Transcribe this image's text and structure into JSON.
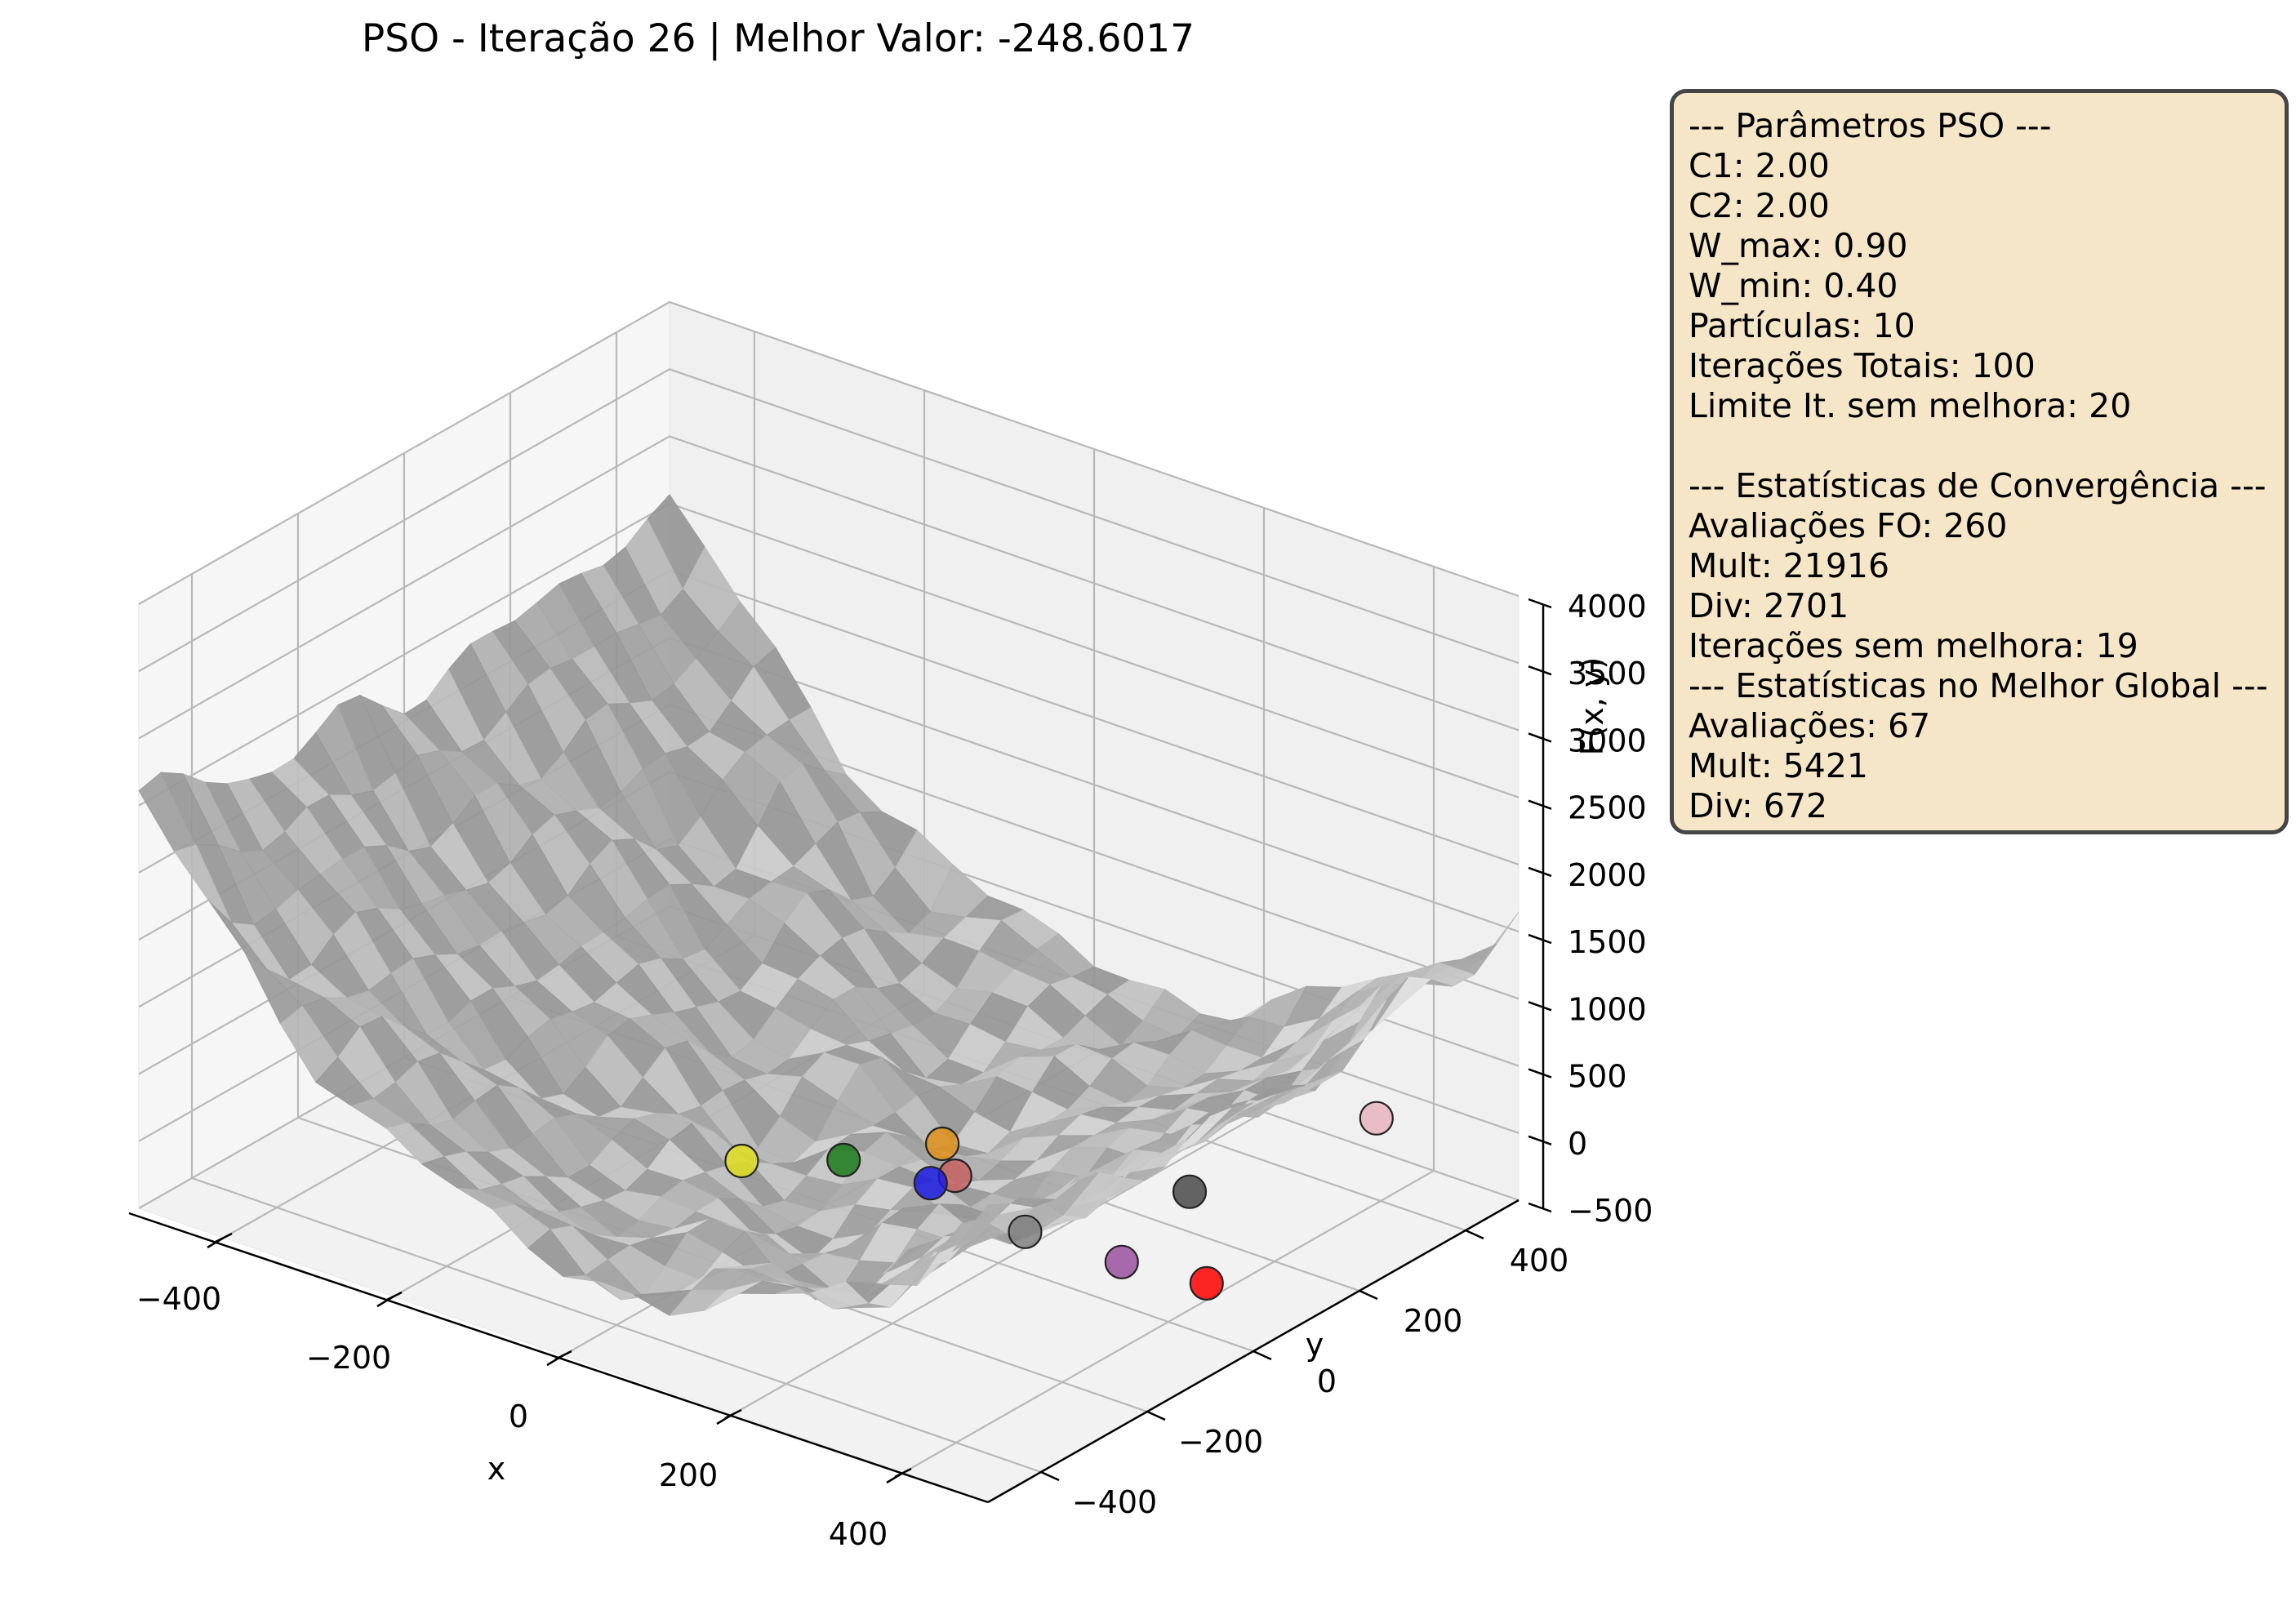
{
  "chart_data": {
    "type": "scatter",
    "subtype": "3d-surface-with-particles",
    "title": "PSO - Iteração 26 | Melhor Valor: -248.6017",
    "xlabel": "x",
    "ylabel": "y",
    "zlabel": "F(x, y)",
    "xlim": [
      -500,
      500
    ],
    "ylim": [
      -500,
      500
    ],
    "zlim": [
      -500,
      4000
    ],
    "x_ticks": [
      "−400",
      "−200",
      "0",
      "200",
      "400"
    ],
    "y_ticks": [
      "−400",
      "−200",
      "0",
      "200",
      "400"
    ],
    "z_ticks": [
      "−500",
      "0",
      "500",
      "1000",
      "1500",
      "2000",
      "2500",
      "3000",
      "3500",
      "4000"
    ],
    "grid": true,
    "surface_color": "#b0b0b0",
    "particles": [
      {
        "name": "pink",
        "color": "#e8b4c0",
        "x": 420,
        "y": 360,
        "z": 250
      },
      {
        "name": "yellow",
        "color": "#e0e020",
        "x": -90,
        "y": -20,
        "z": -330
      },
      {
        "name": "green",
        "color": "#1a7a1a",
        "x": -20,
        "y": 60,
        "z": -350
      },
      {
        "name": "orange",
        "color": "#e0901a",
        "x": 40,
        "y": 150,
        "z": -300
      },
      {
        "name": "brown",
        "color": "#c86464",
        "x": 80,
        "y": 110,
        "z": -360
      },
      {
        "name": "blue",
        "color": "#1a1ae0",
        "x": 70,
        "y": 80,
        "z": -370
      },
      {
        "name": "dark",
        "color": "#4a4a4a",
        "x": 300,
        "y": 200,
        "z": -200
      },
      {
        "name": "gray",
        "color": "#808080",
        "x": 200,
        "y": 50,
        "z": -380
      },
      {
        "name": "purple",
        "color": "#9a50a0",
        "x": 320,
        "y": 40,
        "z": -320
      },
      {
        "name": "red",
        "color": "#ff0000",
        "x": 420,
        "y": 40,
        "z": -260
      }
    ]
  },
  "info_box": {
    "lines": [
      "--- Parâmetros PSO ---",
      "C1: 2.00",
      "C2: 2.00",
      "W_max: 0.90",
      "W_min: 0.40",
      "Partículas: 10",
      "Iterações Totais: 100",
      "Limite It. sem melhora: 20",
      "",
      "--- Estatísticas de Convergência ---",
      "Avaliações FO: 260",
      "Mult: 21916",
      "Div: 2701",
      "Iterações sem melhora: 19",
      "--- Estatísticas no Melhor Global ---",
      "Avaliações: 67",
      "Mult: 5421",
      "Div: 672"
    ]
  }
}
